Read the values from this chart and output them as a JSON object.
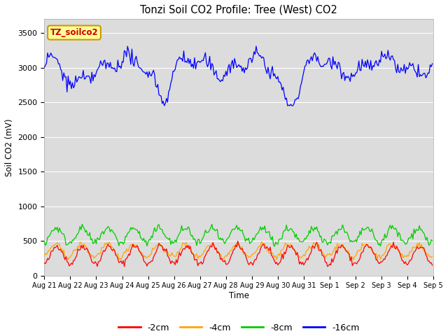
{
  "title": "Tonzi Soil CO2 Profile: Tree (West) CO2",
  "ylabel": "Soil CO2 (mV)",
  "xlabel": "Time",
  "annotation_text": "TZ_soilco2",
  "annotation_bg": "#ffff99",
  "annotation_edge": "#cc9900",
  "annotation_text_color": "#cc0000",
  "ylim": [
    0,
    3700
  ],
  "yticks": [
    0,
    500,
    1000,
    1500,
    2000,
    2500,
    3000,
    3500
  ],
  "bg_color": "#dcdcdc",
  "legend_labels": [
    "-2cm",
    "-4cm",
    "-8cm",
    "-16cm"
  ],
  "legend_colors": [
    "#ff0000",
    "#ffa500",
    "#00cc00",
    "#0000ff"
  ],
  "num_points": 360,
  "days": 15,
  "figwidth": 6.4,
  "figheight": 4.8,
  "dpi": 100
}
